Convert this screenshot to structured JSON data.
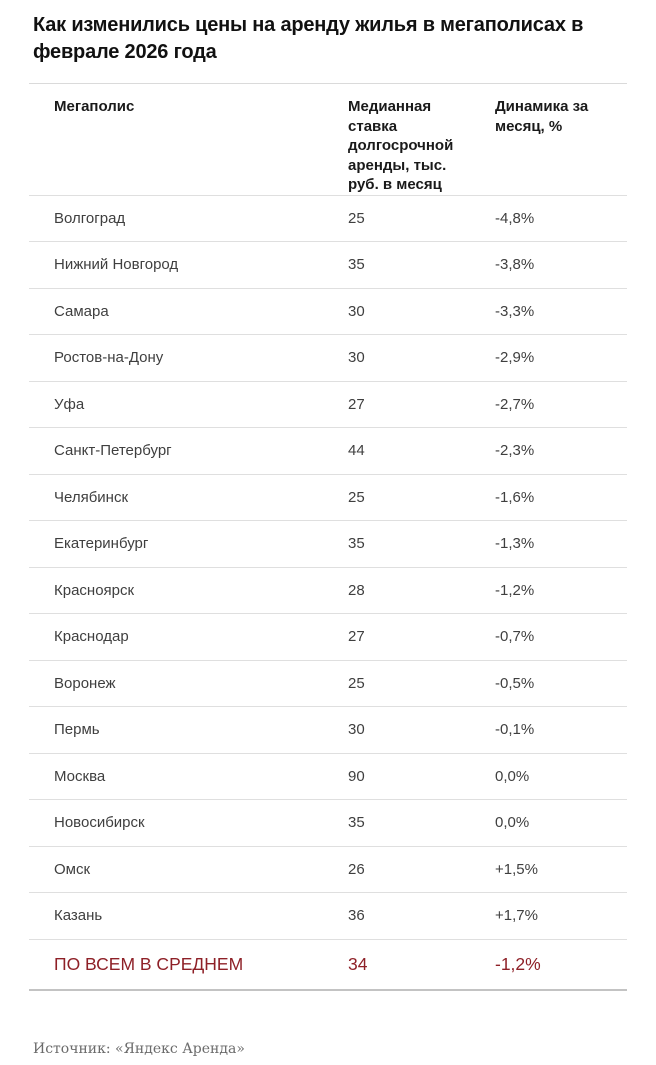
{
  "title": "Как изменились цены на аренду жилья в мегаполисах в феврале 2026 года",
  "table": {
    "columns": [
      "Мегаполис",
      "Медианная ставка долгосрочной аренды, тыс. руб. в месяц",
      "Динамика за месяц, %"
    ],
    "rows": [
      {
        "city": "Волгоград",
        "rate": "25",
        "change": "-4,8%"
      },
      {
        "city": "Нижний Новгород",
        "rate": "35",
        "change": "-3,8%"
      },
      {
        "city": "Самара",
        "rate": "30",
        "change": "-3,3%"
      },
      {
        "city": "Ростов-на-Дону",
        "rate": "30",
        "change": "-2,9%"
      },
      {
        "city": "Уфа",
        "rate": "27",
        "change": "-2,7%"
      },
      {
        "city": "Санкт-Петербург",
        "rate": "44",
        "change": "-2,3%"
      },
      {
        "city": "Челябинск",
        "rate": "25",
        "change": "-1,6%"
      },
      {
        "city": "Екатеринбург",
        "rate": "35",
        "change": "-1,3%"
      },
      {
        "city": "Красноярск",
        "rate": "28",
        "change": "-1,2%"
      },
      {
        "city": "Краснодар",
        "rate": "27",
        "change": "-0,7%"
      },
      {
        "city": "Воронеж",
        "rate": "25",
        "change": "-0,5%"
      },
      {
        "city": "Пермь",
        "rate": "30",
        "change": "-0,1%"
      },
      {
        "city": "Москва",
        "rate": "90",
        "change": "0,0%"
      },
      {
        "city": "Новосибирск",
        "rate": "35",
        "change": "0,0%"
      },
      {
        "city": "Омск",
        "rate": "26",
        "change": "+1,5%"
      },
      {
        "city": "Казань",
        "rate": "36",
        "change": "+1,7%"
      }
    ],
    "summary": {
      "city": "ПО ВСЕМ В СРЕДНЕМ",
      "rate": "34",
      "change": "-1,2%"
    }
  },
  "source": "Источник: «Яндекс Аренда»",
  "colors": {
    "heading_text": "#111111",
    "body_text": "#3f3f3f",
    "summary_red": "#8e2027",
    "divider": "#dfdfdf",
    "bottom_border": "#c3c3c3",
    "source_text": "#6b6b6b"
  },
  "chart_data": {
    "type": "table",
    "title": "Как изменились цены на аренду жилья в мегаполисах в феврале 2026 года",
    "columns": [
      "Мегаполис",
      "Медианная ставка долгосрочной аренды, тыс. руб. в месяц",
      "Динамика за месяц, %"
    ],
    "rows": [
      [
        "Волгоград",
        25,
        "-4,8%"
      ],
      [
        "Нижний Новгород",
        35,
        "-3,8%"
      ],
      [
        "Самара",
        30,
        "-3,3%"
      ],
      [
        "Ростов-на-Дону",
        30,
        "-2,9%"
      ],
      [
        "Уфа",
        27,
        "-2,7%"
      ],
      [
        "Санкт-Петербург",
        44,
        "-2,3%"
      ],
      [
        "Челябинск",
        25,
        "-1,6%"
      ],
      [
        "Екатеринбург",
        35,
        "-1,3%"
      ],
      [
        "Красноярск",
        28,
        "-1,2%"
      ],
      [
        "Краснодар",
        27,
        "-0,7%"
      ],
      [
        "Воронеж",
        25,
        "-0,5%"
      ],
      [
        "Пермь",
        30,
        "-0,1%"
      ],
      [
        "Москва",
        90,
        "0,0%"
      ],
      [
        "Новосибирск",
        35,
        "0,0%"
      ],
      [
        "Омск",
        26,
        "+1,5%"
      ],
      [
        "Казань",
        36,
        "+1,7%"
      ]
    ],
    "summary_row": [
      "ПО ВСЕМ В СРЕДНЕМ",
      34,
      "-1,2%"
    ],
    "source": "Источник: «Яндекс Аренда»"
  }
}
